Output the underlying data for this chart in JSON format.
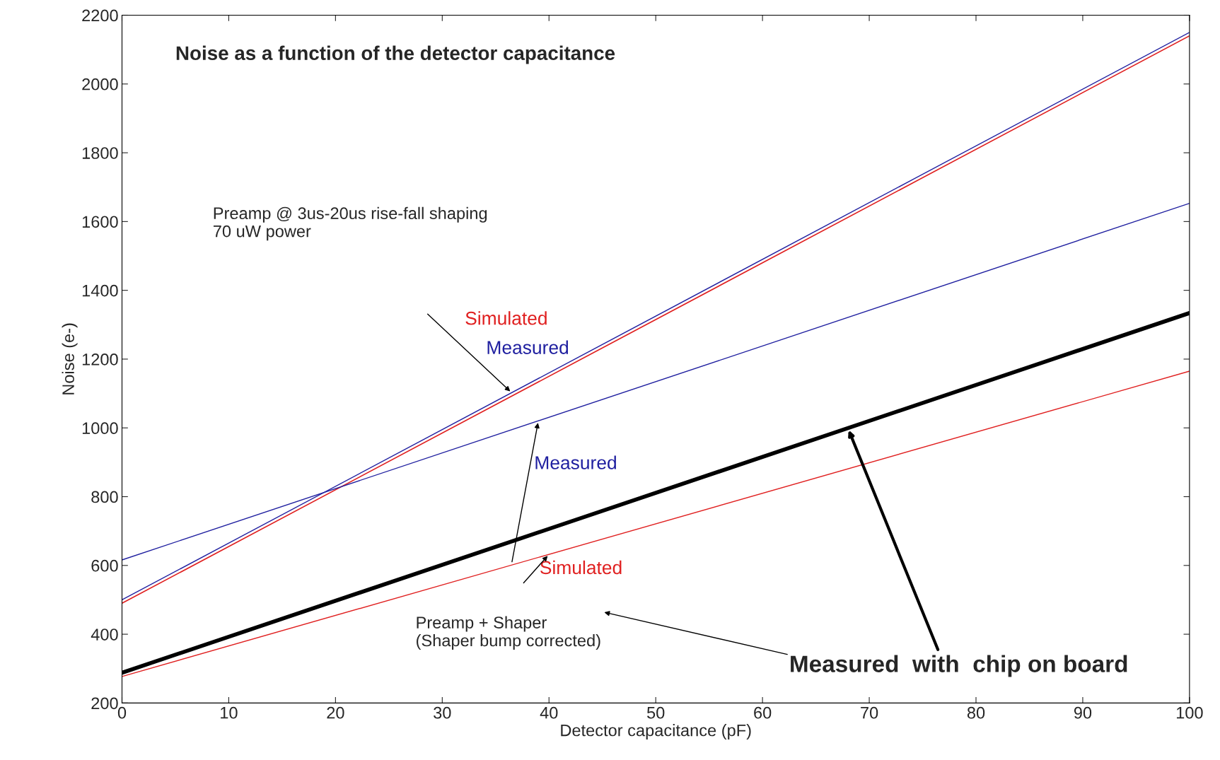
{
  "chart_data": {
    "type": "line",
    "title": "Noise as a function of the detector capacitance",
    "xlabel": "Detector capacitance (pF)",
    "ylabel": "Noise (e-)",
    "x": [
      0,
      100
    ],
    "series": [
      {
        "name": "Simulated",
        "color": "#e02020",
        "values": [
          490,
          2140
        ]
      },
      {
        "name": "Measured",
        "color": "#2020a0",
        "values": [
          500,
          2150
        ]
      },
      {
        "name": "Measured",
        "color": "#2020a0",
        "values": [
          616,
          1653
        ]
      },
      {
        "name": "Simulated",
        "color": "#e02020",
        "values": [
          277,
          1165
        ]
      },
      {
        "color": "#000000",
        "values": [
          288,
          1334
        ]
      }
    ],
    "annotations": [
      "Preamp @ 3us-20us rise-fall shaping\n70 uW power",
      "Preamp + Shaper\n(Shaper bump corrected)",
      "Measured  with  chip on board"
    ],
    "xlim": [
      0,
      100
    ],
    "ylim": [
      200,
      2200
    ],
    "xticks": [
      0,
      10,
      20,
      30,
      40,
      50,
      60,
      70,
      80,
      90,
      100
    ],
    "yticks": [
      200,
      400,
      600,
      800,
      1000,
      1200,
      1400,
      1600,
      1800,
      2000,
      2200
    ],
    "grid": false,
    "marker": "none",
    "line_style": "solid"
  }
}
